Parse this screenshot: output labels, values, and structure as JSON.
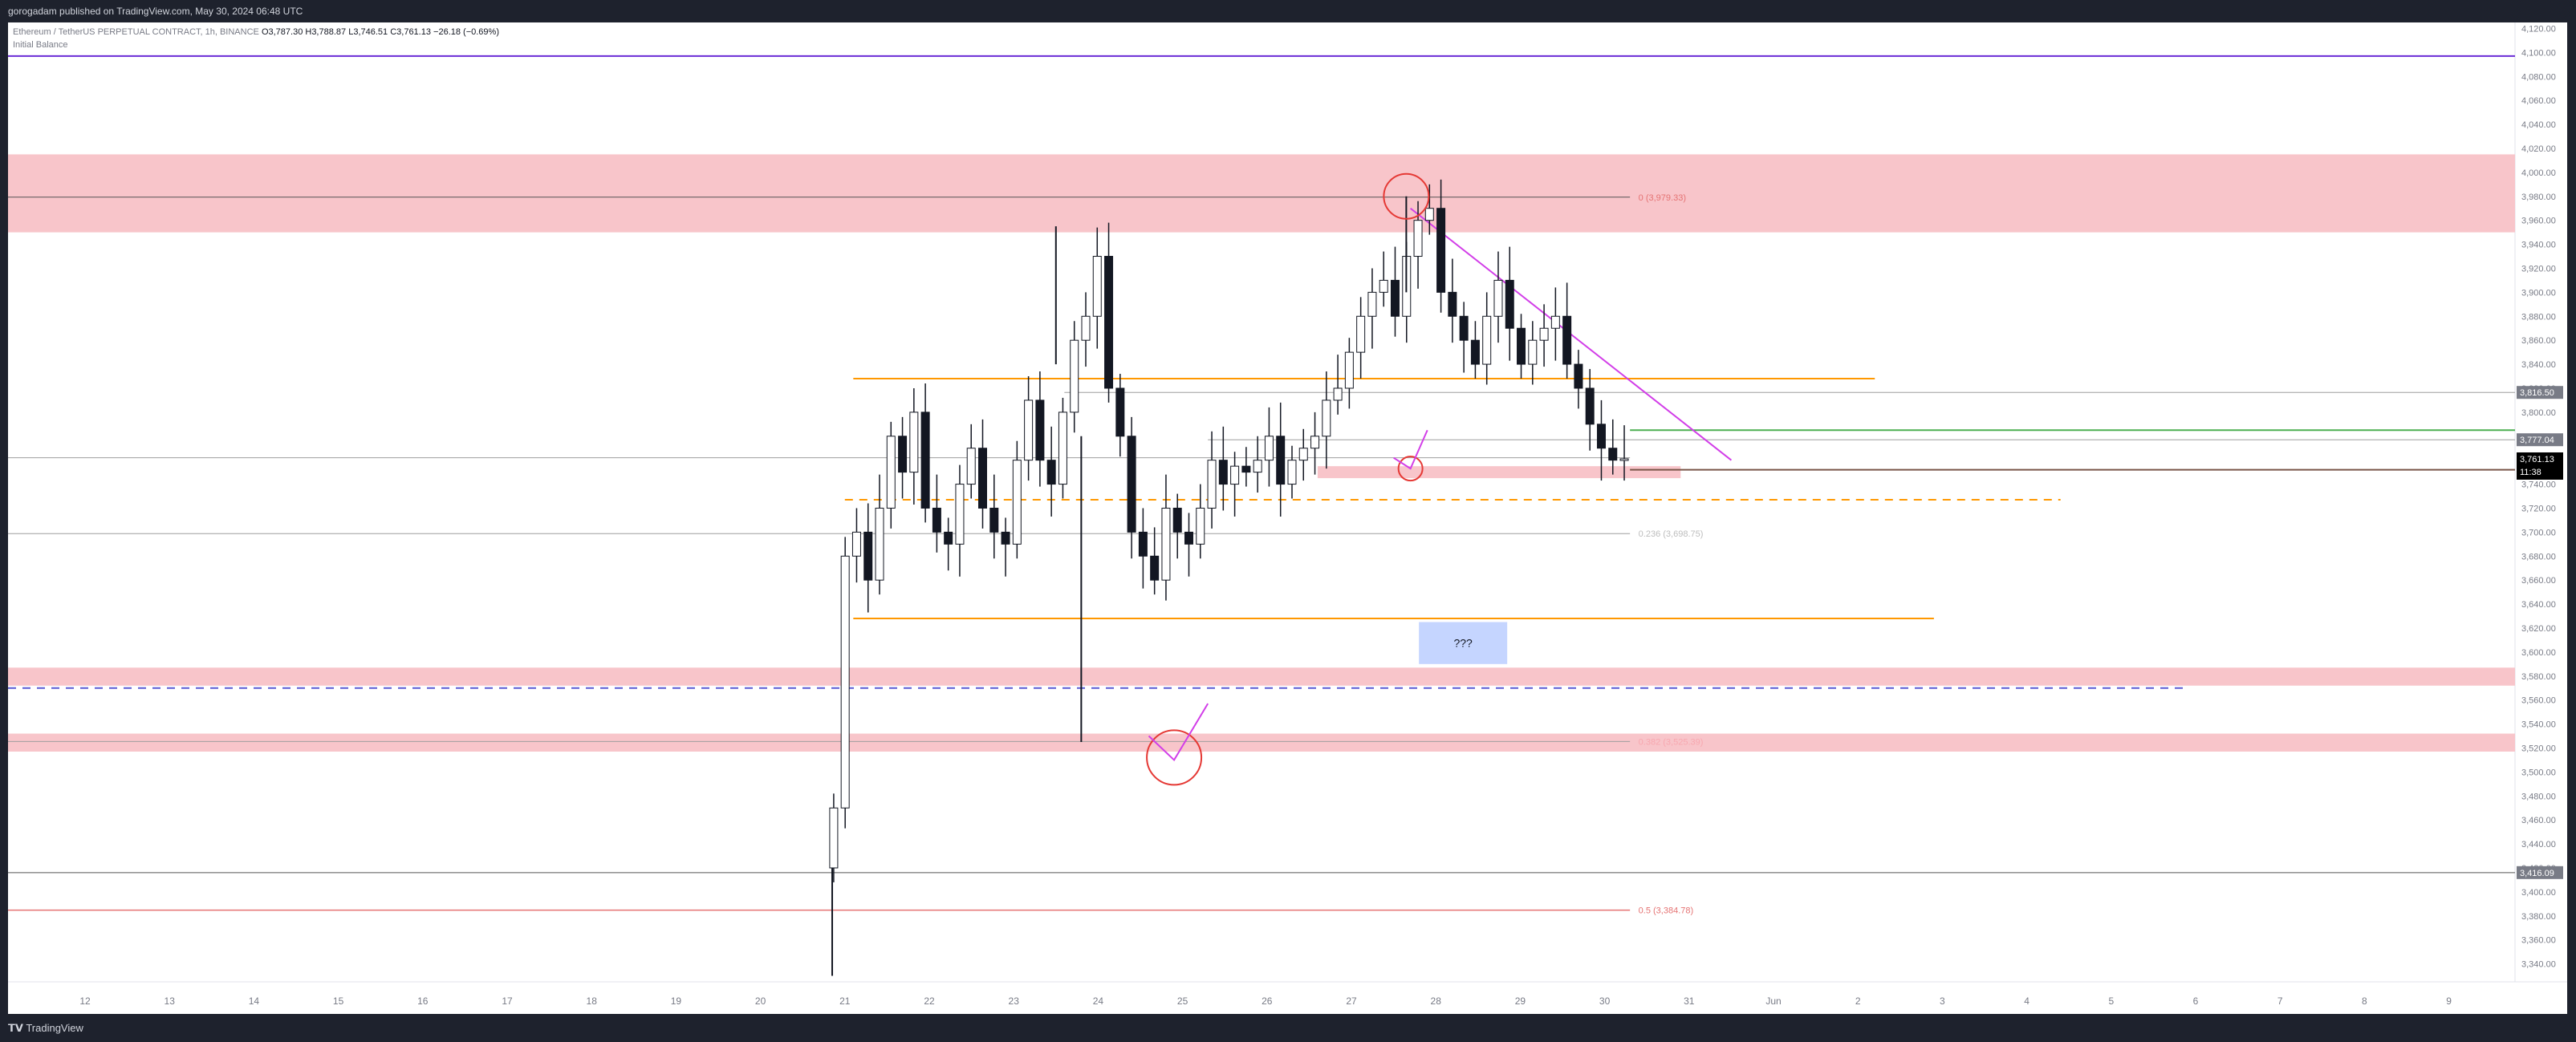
{
  "header": {
    "published": "gorogadam published on TradingView.com, May 30, 2024 06:48 UTC"
  },
  "legend": {
    "symbol": "Ethereum / TetherUS PERPETUAL CONTRACT, 1h, BINANCE",
    "open": "O3,787.30",
    "high": "H3,788.87",
    "low": "L3,746.51",
    "close": "C3,761.13",
    "change": "−26.18 (−0.69%)",
    "indicator": "Initial Balance"
  },
  "footer": {
    "brand": "TradingView"
  },
  "colors": {
    "red_zone": "#f8c5ca",
    "orange": "#ff9800",
    "purple": "#6a2bd6",
    "magenta": "#d23ee8",
    "green": "#4caf50",
    "blue_dash": "#5b5bd6"
  },
  "chart_data": {
    "type": "candlestick",
    "x_labels": [
      "12",
      "13",
      "14",
      "15",
      "16",
      "17",
      "18",
      "19",
      "20",
      "21",
      "22",
      "23",
      "24",
      "25",
      "26",
      "27",
      "28",
      "29",
      "30",
      "31",
      "Jun",
      "2",
      "3",
      "4",
      "5",
      "6",
      "7",
      "8",
      "9"
    ],
    "y_ticks": [
      3340,
      3360,
      3380,
      3400,
      3420,
      3440,
      3460,
      3480,
      3500,
      3520,
      3540,
      3560,
      3580,
      3600,
      3620,
      3640,
      3660,
      3680,
      3700,
      3720,
      3740,
      3760,
      3780,
      3800,
      3820,
      3840,
      3860,
      3880,
      3900,
      3920,
      3940,
      3960,
      3980,
      4000,
      4020,
      4040,
      4060,
      4080,
      4100,
      4120
    ],
    "ylim": [
      3325,
      4125
    ],
    "price_tags": [
      {
        "value": 3816.5,
        "label": "3,816.50",
        "style": "gray"
      },
      {
        "value": 3777.04,
        "label": "3,777.04",
        "style": "gray"
      },
      {
        "value": 3761.13,
        "label": "3,761.13",
        "label2": "11:38",
        "style": "black"
      },
      {
        "value": 3416.09,
        "label": "3,416.09",
        "style": "gray"
      }
    ],
    "fib_labels": [
      {
        "value": 3979.33,
        "text": "0 (3,979.33)",
        "color": "#e57373"
      },
      {
        "value": 3698.75,
        "text": "0.236 (3,698.75)",
        "color": "#bdbdbd"
      },
      {
        "value": 3525.39,
        "text": "0.382 (3,525.39)",
        "color": "#f8a8b0"
      },
      {
        "value": 3384.78,
        "text": "0.5 (3,384.78)",
        "color": "#e57373"
      }
    ],
    "annotation_box": "???",
    "close": [
      3470,
      3680,
      3700,
      3660,
      3720,
      3780,
      3750,
      3800,
      3720,
      3700,
      3690,
      3740,
      3770,
      3720,
      3700,
      3690,
      3760,
      3810,
      3760,
      3740,
      3800,
      3860,
      3880,
      3930,
      3820,
      3780,
      3700,
      3680,
      3660,
      3720,
      3700,
      3690,
      3720,
      3760,
      3740,
      3755,
      3750,
      3760,
      3780,
      3740,
      3760,
      3770,
      3780,
      3810,
      3820,
      3850,
      3880,
      3900,
      3910,
      3880,
      3930,
      3960,
      3970,
      3900,
      3880,
      3860,
      3840,
      3880,
      3910,
      3870,
      3840,
      3860,
      3870,
      3880,
      3840,
      3820,
      3790,
      3770,
      3760,
      3761.13
    ]
  }
}
